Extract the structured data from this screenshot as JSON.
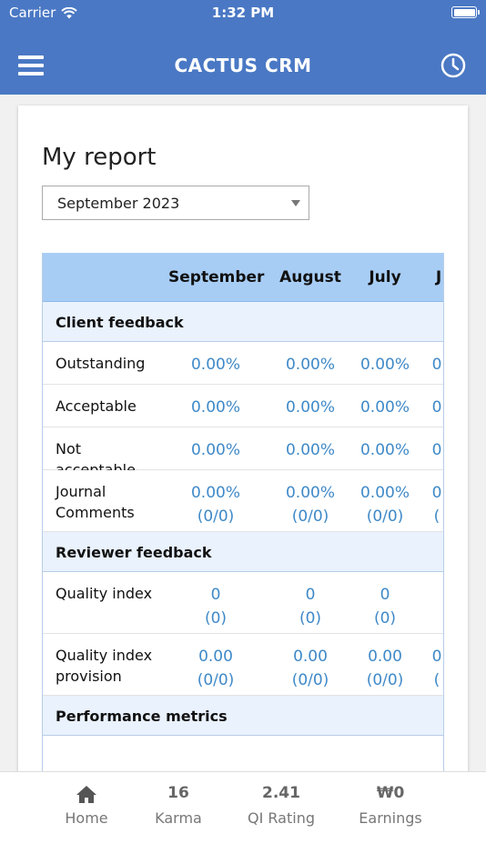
{
  "status": {
    "carrier": "Carrier",
    "time": "1:32 PM"
  },
  "header": {
    "title": "CACTUS CRM",
    "menu_icon": "hamburger-menu-icon",
    "history_icon": "clock-icon"
  },
  "report": {
    "title": "My report",
    "selected_month": "September 2023"
  },
  "table": {
    "columns": [
      "September",
      "August",
      "July",
      "J"
    ],
    "sections": [
      {
        "title": "Client feedback",
        "rows": [
          {
            "label": "Outstanding",
            "values": [
              [
                "0.00%"
              ],
              [
                "0.00%"
              ],
              [
                "0.00%"
              ],
              [
                "0"
              ]
            ]
          },
          {
            "label": "Acceptable",
            "values": [
              [
                "0.00%"
              ],
              [
                "0.00%"
              ],
              [
                "0.00%"
              ],
              [
                "0"
              ]
            ]
          },
          {
            "label": "Not acceptable",
            "values": [
              [
                "0.00%"
              ],
              [
                "0.00%"
              ],
              [
                "0.00%"
              ],
              [
                "0"
              ]
            ]
          },
          {
            "label": "Journal Comments",
            "values": [
              [
                "0.00%",
                "(0/0)"
              ],
              [
                "0.00%",
                "(0/0)"
              ],
              [
                "0.00%",
                "(0/0)"
              ],
              [
                "0",
                "("
              ]
            ]
          }
        ]
      },
      {
        "title": "Reviewer feedback",
        "rows": [
          {
            "label": "Quality index",
            "values": [
              [
                "0",
                "(0)"
              ],
              [
                "0",
                "(0)"
              ],
              [
                "0",
                "(0)"
              ],
              [
                "",
                ""
              ]
            ]
          },
          {
            "label": "Quality index provision",
            "values": [
              [
                "0.00",
                "(0/0)"
              ],
              [
                "0.00",
                "(0/0)"
              ],
              [
                "0.00",
                "(0/0)"
              ],
              [
                "0",
                "("
              ]
            ]
          }
        ]
      },
      {
        "title": "Performance metrics",
        "rows": []
      }
    ]
  },
  "tabs": [
    {
      "icon": "home-icon",
      "value": "",
      "label": "Home"
    },
    {
      "icon": "",
      "value": "16",
      "label": "Karma"
    },
    {
      "icon": "",
      "value": "2.41",
      "label": "QI Rating"
    },
    {
      "icon": "",
      "value": "₩0",
      "label": "Earnings"
    }
  ],
  "colors": {
    "header": "#4a78c4",
    "table_header": "#a8cdf5",
    "section_bg": "#e9f2fd",
    "value_text": "#3f89c8"
  }
}
